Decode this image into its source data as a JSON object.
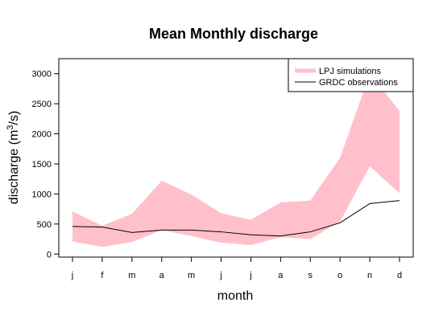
{
  "chart_data": {
    "type": "area",
    "title": "Mean Monthly discharge",
    "xlabel": "month",
    "ylabel_main": "discharge (m",
    "ylabel_sup": "3",
    "ylabel_end": "/s)",
    "categories": [
      "j",
      "f",
      "m",
      "a",
      "m",
      "j",
      "j",
      "a",
      "s",
      "o",
      "n",
      "d"
    ],
    "ylim": [
      -50,
      3250
    ],
    "yticks": [
      0,
      500,
      1000,
      1500,
      2000,
      2500,
      3000
    ],
    "legend_position": "top-right",
    "series": [
      {
        "name": "LPJ simulations",
        "kind": "band",
        "color": "#FFC0CB",
        "upper": [
          710,
          470,
          670,
          1220,
          990,
          680,
          570,
          860,
          890,
          1600,
          3000,
          2380
        ],
        "lower": [
          210,
          120,
          200,
          400,
          300,
          190,
          150,
          280,
          250,
          540,
          1460,
          1010
        ]
      },
      {
        "name": "GRDC observations",
        "kind": "line",
        "color": "#000000",
        "values": [
          460,
          450,
          360,
          400,
          400,
          370,
          320,
          300,
          370,
          520,
          840,
          890
        ]
      }
    ]
  }
}
